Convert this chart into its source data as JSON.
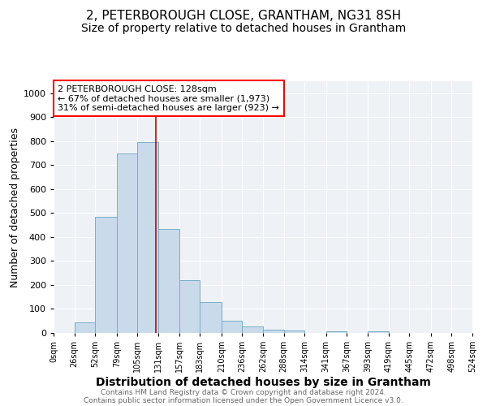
{
  "title": "2, PETERBOROUGH CLOSE, GRANTHAM, NG31 8SH",
  "subtitle": "Size of property relative to detached houses in Grantham",
  "xlabel": "Distribution of detached houses by size in Grantham",
  "ylabel": "Number of detached properties",
  "bin_edges": [
    0,
    26,
    52,
    79,
    105,
    131,
    157,
    183,
    210,
    236,
    262,
    288,
    314,
    341,
    367,
    393,
    419,
    445,
    472,
    498,
    524
  ],
  "bar_heights": [
    0,
    45,
    485,
    750,
    795,
    435,
    220,
    130,
    50,
    28,
    15,
    10,
    0,
    8,
    0,
    8,
    0,
    0,
    0,
    0
  ],
  "bar_color": "#c9daea",
  "bar_edgecolor": "#7aaec8",
  "property_line_x": 128,
  "property_label": "2 PETERBOROUGH CLOSE: 128sqm",
  "annotation_line1": "← 67% of detached houses are smaller (1,973)",
  "annotation_line2": "31% of semi-detached houses are larger (923) →",
  "vline_color": "#cc0000",
  "ylim": [
    0,
    1050
  ],
  "yticks": [
    0,
    100,
    200,
    300,
    400,
    500,
    600,
    700,
    800,
    900,
    1000
  ],
  "bg_color": "#eef2f7",
  "footer1": "Contains HM Land Registry data © Crown copyright and database right 2024.",
  "footer2": "Contains public sector information licensed under the Open Government Licence v3.0.",
  "title_fontsize": 11,
  "subtitle_fontsize": 10,
  "xlabel_fontsize": 10,
  "ylabel_fontsize": 9
}
